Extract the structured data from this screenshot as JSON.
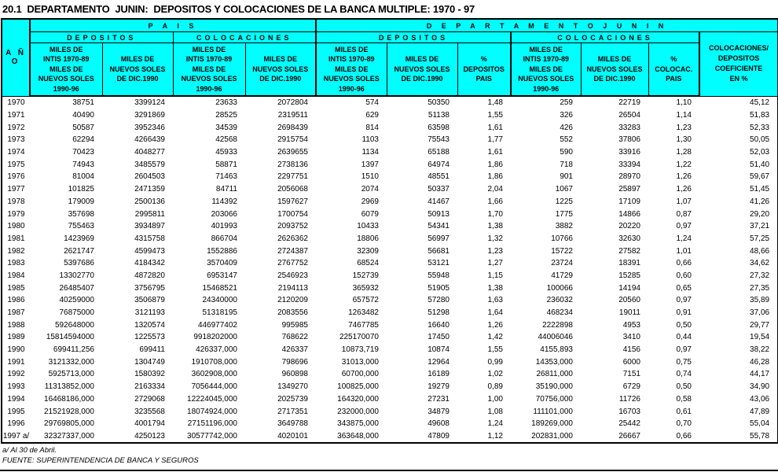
{
  "colors": {
    "header_bg": "#00FFFF",
    "border": "#000000",
    "page_bg": "#FFFFFF"
  },
  "title": "20.1  DEPARTAMENTO  JUNIN:  DEPOSITOS Y COLOCACIONES DE LA BANCA MULTIPLE: 1970 - 97",
  "table": {
    "group_headers": {
      "pais": "P A I S",
      "junin": "D E P A R T A M E N T O      J U N I N"
    },
    "section_headers": {
      "pais_depositos": "DEPOSITOS",
      "pais_colocaciones": "COLOCACIONES",
      "junin_depositos": "DEPOSITOS",
      "junin_colocaciones": "COLOCACIONES"
    },
    "column_headers": {
      "ano": "A Ñ O",
      "intis_soles": "MILES DE\nINTIS 1970-89\nMILES DE\nNUEVOS SOLES\n1990-96",
      "soles_dic1990": "MILES DE\nNUEVOS SOLES\nDE DIC.1990",
      "pct_depositos": "%\nDEPOSITOS\nPAIS",
      "pct_colocaciones": "%\nCOLOCAC.\nPAIS",
      "coeficiente": "COLOCACIONES/\nDEPOSITOS\nCOEFICIENTE\nEN %"
    },
    "rows": [
      {
        "year": "1970",
        "values": [
          "38751",
          "3399124",
          "23633",
          "2072804",
          "574",
          "50350",
          "1,48",
          "259",
          "22719",
          "1,10",
          "45,12"
        ]
      },
      {
        "year": "1971",
        "values": [
          "40490",
          "3291869",
          "28525",
          "2319511",
          "629",
          "51138",
          "1,55",
          "326",
          "26504",
          "1,14",
          "51,83"
        ]
      },
      {
        "year": "1972",
        "values": [
          "50587",
          "3952346",
          "34539",
          "2698439",
          "814",
          "63598",
          "1,61",
          "426",
          "33283",
          "1,23",
          "52,33"
        ]
      },
      {
        "year": "1973",
        "values": [
          "62294",
          "4266439",
          "42568",
          "2915754",
          "1103",
          "75543",
          "1,77",
          "552",
          "37806",
          "1,30",
          "50,05"
        ]
      },
      {
        "year": "1974",
        "values": [
          "70423",
          "4048277",
          "45933",
          "2639655",
          "1134",
          "65188",
          "1,61",
          "590",
          "33916",
          "1,28",
          "52,03"
        ]
      },
      {
        "year": "1975",
        "values": [
          "74943",
          "3485579",
          "58871",
          "2738136",
          "1397",
          "64974",
          "1,86",
          "718",
          "33394",
          "1,22",
          "51,40"
        ]
      },
      {
        "year": "1976",
        "values": [
          "81004",
          "2604503",
          "71463",
          "2297751",
          "1510",
          "48551",
          "1,86",
          "901",
          "28970",
          "1,26",
          "59,67"
        ]
      },
      {
        "year": "1977",
        "values": [
          "101825",
          "2471359",
          "84711",
          "2056068",
          "2074",
          "50337",
          "2,04",
          "1067",
          "25897",
          "1,26",
          "51,45"
        ]
      },
      {
        "year": "1978",
        "values": [
          "179009",
          "2500136",
          "114392",
          "1597627",
          "2969",
          "41467",
          "1,66",
          "1225",
          "17109",
          "1,07",
          "41,26"
        ]
      },
      {
        "year": "1979",
        "values": [
          "357698",
          "2995811",
          "203066",
          "1700754",
          "6079",
          "50913",
          "1,70",
          "1775",
          "14866",
          "0,87",
          "29,20"
        ]
      },
      {
        "year": "1980",
        "values": [
          "755463",
          "3934897",
          "401993",
          "2093752",
          "10433",
          "54341",
          "1,38",
          "3882",
          "20220",
          "0,97",
          "37,21"
        ]
      },
      {
        "year": "1981",
        "values": [
          "1423969",
          "4315758",
          "866704",
          "2626362",
          "18806",
          "56997",
          "1,32",
          "10766",
          "32630",
          "1,24",
          "57,25"
        ]
      },
      {
        "year": "1982",
        "values": [
          "2621747",
          "4599473",
          "1552886",
          "2724387",
          "32309",
          "56681",
          "1,23",
          "15722",
          "27582",
          "1,01",
          "48,66"
        ]
      },
      {
        "year": "1983",
        "values": [
          "5397686",
          "4184342",
          "3570409",
          "2767752",
          "68524",
          "53121",
          "1,27",
          "23724",
          "18391",
          "0,66",
          "34,62"
        ]
      },
      {
        "year": "1984",
        "values": [
          "13302770",
          "4872820",
          "6953147",
          "2546923",
          "152739",
          "55948",
          "1,15",
          "41729",
          "15285",
          "0,60",
          "27,32"
        ]
      },
      {
        "year": "1985",
        "values": [
          "26485407",
          "3756795",
          "15468521",
          "2194113",
          "365932",
          "51905",
          "1,38",
          "100066",
          "14194",
          "0,65",
          "27,35"
        ]
      },
      {
        "year": "1986",
        "values": [
          "40259000",
          "3506879",
          "24340000",
          "2120209",
          "657572",
          "57280",
          "1,63",
          "236032",
          "20560",
          "0,97",
          "35,89"
        ]
      },
      {
        "year": "1987",
        "values": [
          "76875000",
          "3121193",
          "51318195",
          "2083556",
          "1263482",
          "51298",
          "1,64",
          "468234",
          "19011",
          "0,91",
          "37,06"
        ]
      },
      {
        "year": "1988",
        "values": [
          "592648000",
          "1320574",
          "446977402",
          "995985",
          "7467785",
          "16640",
          "1,26",
          "2222898",
          "4953",
          "0,50",
          "29,77"
        ]
      },
      {
        "year": "1989",
        "values": [
          "15814594000",
          "1225573",
          "9918202000",
          "768622",
          "225170070",
          "17450",
          "1,42",
          "44006046",
          "3410",
          "0,44",
          "19,54"
        ]
      },
      {
        "year": "1990",
        "values": [
          "699411,256",
          "699411",
          "426337,000",
          "426337",
          "10873,719",
          "10874",
          "1,55",
          "4155,893",
          "4156",
          "0,97",
          "38,22"
        ]
      },
      {
        "year": "1991",
        "values": [
          "3121332,000",
          "1304749",
          "1910708,000",
          "798696",
          "31013,000",
          "12964",
          "0,99",
          "14353,000",
          "6000",
          "0,75",
          "46,28"
        ]
      },
      {
        "year": "1992",
        "values": [
          "5925713,000",
          "1580392",
          "3602908,000",
          "960898",
          "60700,000",
          "16189",
          "1,02",
          "26811,000",
          "7151",
          "0,74",
          "44,17"
        ]
      },
      {
        "year": "1993",
        "values": [
          "11313852,000",
          "2163334",
          "7056444,000",
          "1349270",
          "100825,000",
          "19279",
          "0,89",
          "35190,000",
          "6729",
          "0,50",
          "34,90"
        ]
      },
      {
        "year": "1994",
        "values": [
          "16468186,000",
          "2729068",
          "12224045,000",
          "2025739",
          "164320,000",
          "27231",
          "1,00",
          "70756,000",
          "11726",
          "0,58",
          "43,06"
        ]
      },
      {
        "year": "1995",
        "values": [
          "21521928,000",
          "3235568",
          "18074924,000",
          "2717351",
          "232000,000",
          "34879",
          "1,08",
          "111101,000",
          "16703",
          "0,61",
          "47,89"
        ]
      },
      {
        "year": "1996",
        "values": [
          "29769805,000",
          "4001794",
          "27151196,000",
          "3649788",
          "343875,000",
          "49608",
          "1,24",
          "189269,000",
          "25442",
          "0,70",
          "55,04"
        ]
      },
      {
        "year": "1997 a/",
        "values": [
          "32327337,000",
          "4250123",
          "30577742,000",
          "4020101",
          "363648,000",
          "47809",
          "1,12",
          "202831,000",
          "26667",
          "0,66",
          "55,78"
        ]
      }
    ]
  },
  "footnotes": {
    "note_a": "a/ Al 30 de Abril.",
    "source": "FUENTE: SUPERINTENDENCIA DE BANCA Y SEGUROS"
  }
}
